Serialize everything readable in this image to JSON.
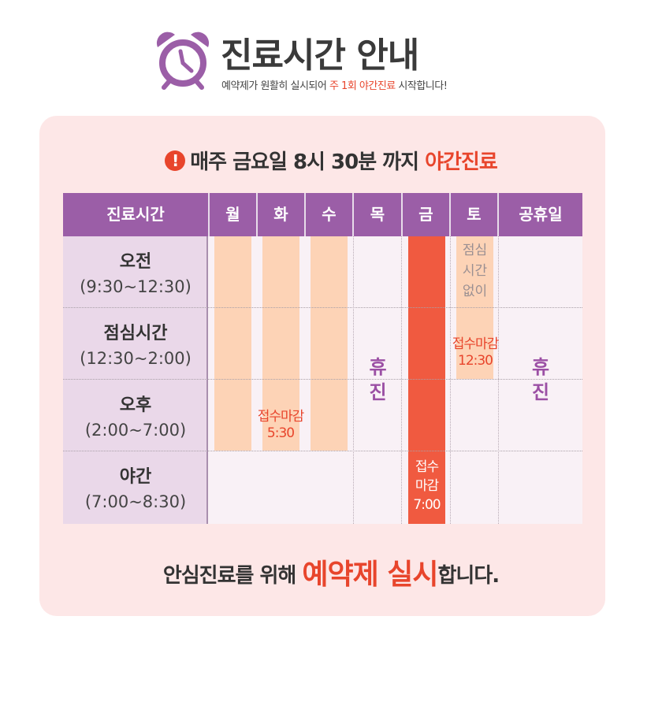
{
  "header": {
    "title": "진료시간 안내",
    "subtitle_pre": "예약제가 원활히 실시되어 ",
    "subtitle_highlight": "주 1회 야간진료",
    "subtitle_post": " 시작합니다!",
    "icon": "alarm-clock-icon"
  },
  "notice": {
    "icon": "exclamation-icon",
    "text_pre": "매주 ",
    "text_strong": "금요일 8시 30분",
    "text_mid": " 까지 ",
    "text_highlight": "야간진료"
  },
  "table": {
    "header_label": "진료시간",
    "days": [
      "월",
      "화",
      "수",
      "목",
      "금",
      "토",
      "공휴일"
    ],
    "rows": [
      {
        "name": "오전",
        "time": "(9:30~12:30)"
      },
      {
        "name": "점심시간",
        "time": "(12:30~2:00)"
      },
      {
        "name": "오후",
        "time": "(2:00~7:00)"
      },
      {
        "name": "야간",
        "time": "(7:00~8:30)"
      }
    ],
    "weekday_deadline": [
      "접수마감",
      "5:30"
    ],
    "thursday_closed": [
      "휴",
      "진"
    ],
    "friday_deadline": [
      "접수",
      "마감",
      "7:00"
    ],
    "saturday_no_lunch": [
      "점심",
      "시간",
      "없이"
    ],
    "saturday_deadline": [
      "접수마감",
      "12:30"
    ],
    "holiday_closed": [
      "휴",
      "진"
    ]
  },
  "footer": {
    "text_pre": "안심진료를 위해 ",
    "text_highlight": "예약제 실시",
    "text_post": "합니다."
  },
  "colors": {
    "accent_red": "#e8452c",
    "purple": "#9b5ea7",
    "peach": "#fdd3b6",
    "friday_red": "#f05a40",
    "panel_pink": "#fde7e7"
  }
}
